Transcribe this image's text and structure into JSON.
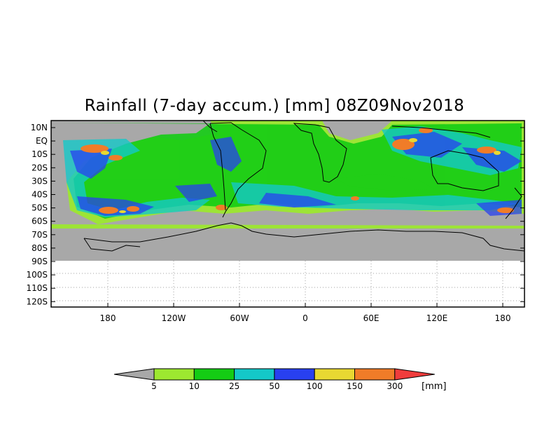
{
  "title": "Rainfall (7-day accum.) [mm] 08Z09Nov2018",
  "lat_labels": [
    "10N",
    "EQ",
    "10S",
    "20S",
    "30S",
    "40S",
    "50S",
    "60S",
    "70S",
    "80S",
    "90S",
    "100S",
    "110S",
    "120S"
  ],
  "lon_labels": [
    "180",
    "120W",
    "60W",
    "0",
    "60E",
    "120E",
    "180"
  ],
  "colorbar": {
    "unit": "[mm]",
    "thresholds": [
      "5",
      "10",
      "25",
      "50",
      "100",
      "150",
      "300"
    ],
    "colors": [
      "#a8a8a8",
      "#9de830",
      "#14cc14",
      "#14c8c8",
      "#2840f0",
      "#e8d832",
      "#f07c28",
      "#f03c3c"
    ]
  },
  "colors": {
    "no_rain": "#a8a8a8",
    "grid": "#a0a0a0",
    "coastline": "#000000"
  }
}
